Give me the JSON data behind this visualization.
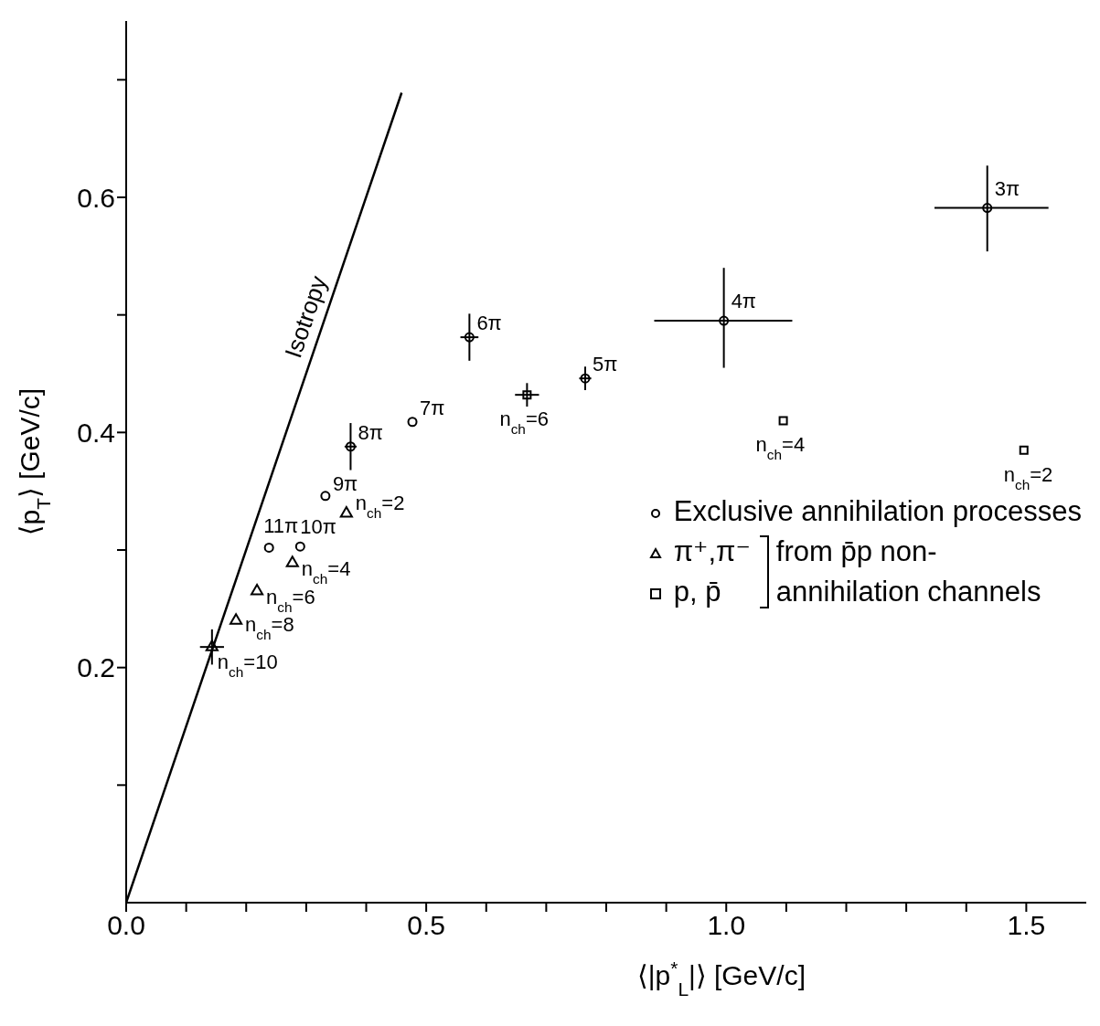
{
  "chart_data": {
    "type": "scatter",
    "xlabel": "⟨|p$^{*}$$_{L}$|⟩   [GeV/c]",
    "ylabel": "⟨p$_{T}$⟩ [GeV/c]",
    "xlim": [
      0,
      1.6
    ],
    "ylim": [
      0,
      0.75
    ],
    "xticks": [
      {
        "value": 0,
        "label": "0.0"
      },
      {
        "value": 0.1,
        "label": null
      },
      {
        "value": 0.2,
        "label": null
      },
      {
        "value": 0.3,
        "label": null
      },
      {
        "value": 0.4,
        "label": null
      },
      {
        "value": 0.5,
        "label": "0.5"
      },
      {
        "value": 0.6,
        "label": null
      },
      {
        "value": 0.7,
        "label": null
      },
      {
        "value": 0.8,
        "label": null
      },
      {
        "value": 0.9,
        "label": null
      },
      {
        "value": 1,
        "label": "1.0"
      },
      {
        "value": 1.1,
        "label": null
      },
      {
        "value": 1.2,
        "label": null
      },
      {
        "value": 1.3,
        "label": null
      },
      {
        "value": 1.4,
        "label": null
      },
      {
        "value": 1.5,
        "label": "1.5"
      }
    ],
    "yticks": [
      {
        "value": 0.1,
        "label": null
      },
      0.2,
      {
        "value": 0.3,
        "label": null
      },
      0.4,
      {
        "value": 0.5,
        "label": null
      },
      0.6,
      {
        "value": 0.7,
        "label": null
      }
    ],
    "legend": "right",
    "series": [
      {
        "name": "Exclusive annihilation processes",
        "marker": "circle",
        "color": "#000000",
        "x": [
          1.435,
          0.996,
          0.765,
          0.572,
          0.477,
          0.374,
          0.332,
          0.29,
          0.238
        ],
        "values": [
          0.591,
          0.495,
          0.446,
          0.481,
          0.409,
          0.388,
          0.346,
          0.303,
          0.302
        ],
        "errors": [
          [
            0.554,
            0.627
          ],
          [
            0.455,
            0.54
          ],
          0.01,
          0.02,
          null,
          0.02,
          null,
          null,
          null
        ],
        "xerrors": [
          [
            1.347,
            1.537
          ],
          [
            0.88,
            1.11
          ],
          0.01,
          0.015,
          null,
          0.01,
          null,
          null,
          null
        ]
      },
      {
        "name": "π⁺,π⁻",
        "marker": "triangle",
        "color": "#000000",
        "x": [
          0.367,
          0.277,
          0.218,
          0.183,
          0.143
        ],
        "values": [
          0.331,
          0.289,
          0.265,
          0.24,
          0.2175
        ],
        "errors": [
          null,
          null,
          null,
          null,
          0.015
        ],
        "xerrors": [
          null,
          null,
          null,
          null,
          0.02
        ]
      },
      {
        "name": "p, p̄",
        "marker": "square",
        "color": "#000000",
        "x": [
          0.668,
          1.095,
          1.496
        ],
        "values": [
          0.432,
          0.41,
          0.385
        ],
        "errors": [
          0.01,
          null,
          null
        ],
        "xerrors": [
          0.02,
          null,
          null
        ]
      },
      {
        "name": "Isotropy",
        "type": "line",
        "marker": "none",
        "line_style": "solid",
        "color": "#000000",
        "x": [
          0,
          0.459
        ],
        "values": [
          0,
          0.689
        ]
      }
    ],
    "annotations": [
      {
        "text": "3π",
        "x": 1.435,
        "y": 0.591
      },
      {
        "text": "4π",
        "x": 0.996,
        "y": 0.495
      },
      {
        "text": "5π",
        "x": 0.765,
        "y": 0.446
      },
      {
        "text": "6π",
        "x": 0.572,
        "y": 0.481
      },
      {
        "text": "7π",
        "x": 0.477,
        "y": 0.409
      },
      {
        "text": "8π",
        "x": 0.374,
        "y": 0.388
      },
      {
        "text": "9π",
        "x": 0.332,
        "y": 0.346
      },
      {
        "text": "10π",
        "x": 0.29,
        "y": 0.303
      },
      {
        "text": "11π",
        "x": 0.238,
        "y": 0.302
      },
      {
        "text": "n$_{ch}$=2",
        "x": 0.367,
        "y": 0.331
      },
      {
        "text": "n$_{ch}$=4",
        "x": 0.277,
        "y": 0.289
      },
      {
        "text": "n$_{ch}$=6",
        "x": 0.218,
        "y": 0.265
      },
      {
        "text": "n$_{ch}$=8",
        "x": 0.183,
        "y": 0.24
      },
      {
        "text": "n$_{ch}$=10",
        "x": 0.143,
        "y": 0.2175
      },
      {
        "text": "n$_{ch}$=6",
        "x": 0.668,
        "y": 0.432
      },
      {
        "text": "n$_{ch}$=4",
        "x": 1.095,
        "y": 0.41
      },
      {
        "text": "n$_{ch}$=2",
        "x": 1.496,
        "y": 0.385
      },
      "from p̄p non-annihilation channels"
    ]
  }
}
